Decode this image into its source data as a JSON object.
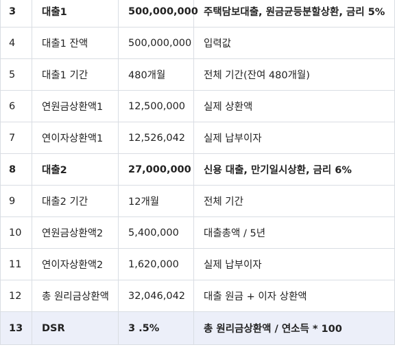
{
  "rows": [
    {
      "no": "3",
      "item": "대출1",
      "value": "500,000,000",
      "note": "주택담보대출, 원금균등분할상환, 금리 5%",
      "bold": true,
      "highlight": false
    },
    {
      "no": "4",
      "item": "대출1 잔액",
      "value": "500,000,000",
      "note": "입력값",
      "bold": false,
      "highlight": false
    },
    {
      "no": "5",
      "item": "대출1 기간",
      "value": "480개월",
      "note": "전체 기간(잔여 480개월)",
      "bold": false,
      "highlight": false
    },
    {
      "no": "6",
      "item": "연원금상환액1",
      "value": "12,500,000",
      "note": "실제 상환액",
      "bold": false,
      "highlight": false
    },
    {
      "no": "7",
      "item": "연이자상환액1",
      "value": "12,526,042",
      "note": "실제 납부이자",
      "bold": false,
      "highlight": false
    },
    {
      "no": "8",
      "item": "대출2",
      "value": "27,000,000",
      "note": "신용 대출, 만기일시상환, 금리 6%",
      "bold": true,
      "highlight": false
    },
    {
      "no": "9",
      "item": "대출2 기간",
      "value": "12개월",
      "note": "전체 기간",
      "bold": false,
      "highlight": false
    },
    {
      "no": "10",
      "item": "연원금상환액2",
      "value": "5,400,000",
      "note": "대출총액 / 5년",
      "bold": false,
      "highlight": false
    },
    {
      "no": "11",
      "item": "연이자상환액2",
      "value": "1,620,000",
      "note": "실제 납부이자",
      "bold": false,
      "highlight": false
    },
    {
      "no": "12",
      "item": "총 원리금상환액",
      "value": "32,046,042",
      "note": "대출 원금 + 이자 상환액",
      "bold": false,
      "highlight": false
    },
    {
      "no": "13",
      "item": "DSR",
      "value": "3  .5%",
      "note": "총 원리금상환액 / 연소득 * 100",
      "bold": true,
      "highlight": true
    }
  ]
}
